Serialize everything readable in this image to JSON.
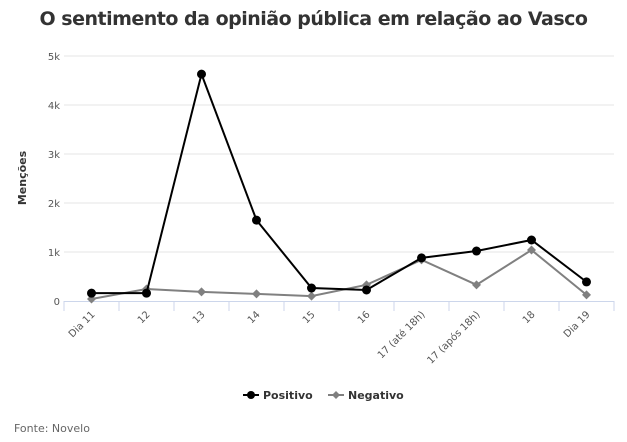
{
  "chart_data": {
    "type": "line",
    "title": "O sentimento da opinião pública em relação ao Vasco",
    "ylabel": "Menções",
    "xlabel": "",
    "categories": [
      "Dia 11",
      "12",
      "13",
      "14",
      "15",
      "16",
      "17 (até 18h)",
      "17 (após 18h)",
      "18",
      "Dia 19"
    ],
    "ylim": [
      0,
      5000
    ],
    "yticks": [
      0,
      1000,
      2000,
      3000,
      4000,
      5000
    ],
    "ytick_labels": [
      "0",
      "1k",
      "2k",
      "3k",
      "4k",
      "5k"
    ],
    "grid": true,
    "legend": "bottom",
    "series": [
      {
        "name": "Positivo",
        "color": "#000000",
        "marker": "circle",
        "values": [
          160,
          160,
          4630,
          1650,
          265,
          225,
          880,
          1020,
          1245,
          390
        ]
      },
      {
        "name": "Negativo",
        "color": "#808080",
        "marker": "diamond",
        "values": [
          40,
          245,
          185,
          145,
          100,
          330,
          840,
          330,
          1040,
          125
        ]
      }
    ]
  },
  "source": "Fonte: Novelo"
}
